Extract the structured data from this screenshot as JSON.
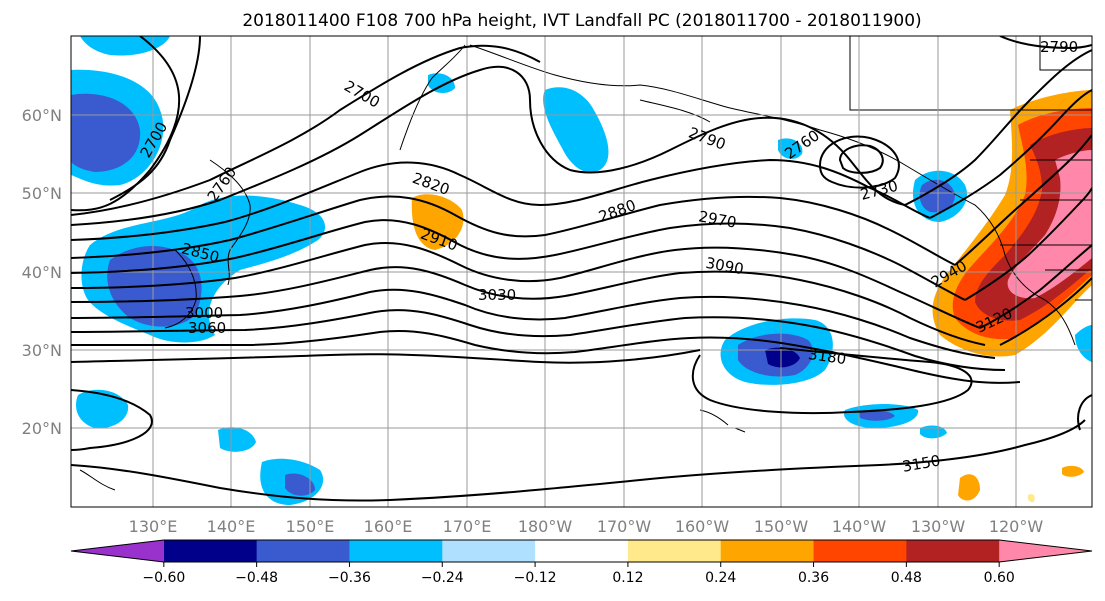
{
  "title": "2018011400 F108 700 hPa height, IVT Landfall PC (2018011700 - 2018011900)",
  "lat_labels": [
    "60°N",
    "50°N",
    "40°N",
    "30°N",
    "20°N"
  ],
  "lon_labels": [
    "130°E",
    "140°E",
    "150°E",
    "160°E",
    "170°E",
    "180°W",
    "170°W",
    "160°W",
    "150°W",
    "140°W",
    "130°W",
    "120°W"
  ],
  "colorbar": {
    "colors": [
      "#9932cc",
      "#00008b",
      "#3a5bd0",
      "#00bfff",
      "#b0e0ff",
      "#ffffff",
      "#ffe98a",
      "#ffa500",
      "#ff4500",
      "#b22222",
      "#ff88aa"
    ],
    "tick_labels": [
      "−0.60",
      "−0.48",
      "−0.36",
      "−0.24",
      "−0.12",
      "0.12",
      "0.24",
      "0.36",
      "0.48",
      "0.60"
    ]
  },
  "contour_labels": [
    "2700",
    "2760",
    "2790",
    "2820",
    "2850",
    "2880",
    "2910",
    "2940",
    "2970",
    "3000",
    "3030",
    "3060",
    "3090",
    "3120",
    "3150",
    "3180",
    "2730",
    "2700",
    "2760",
    "2790"
  ]
}
